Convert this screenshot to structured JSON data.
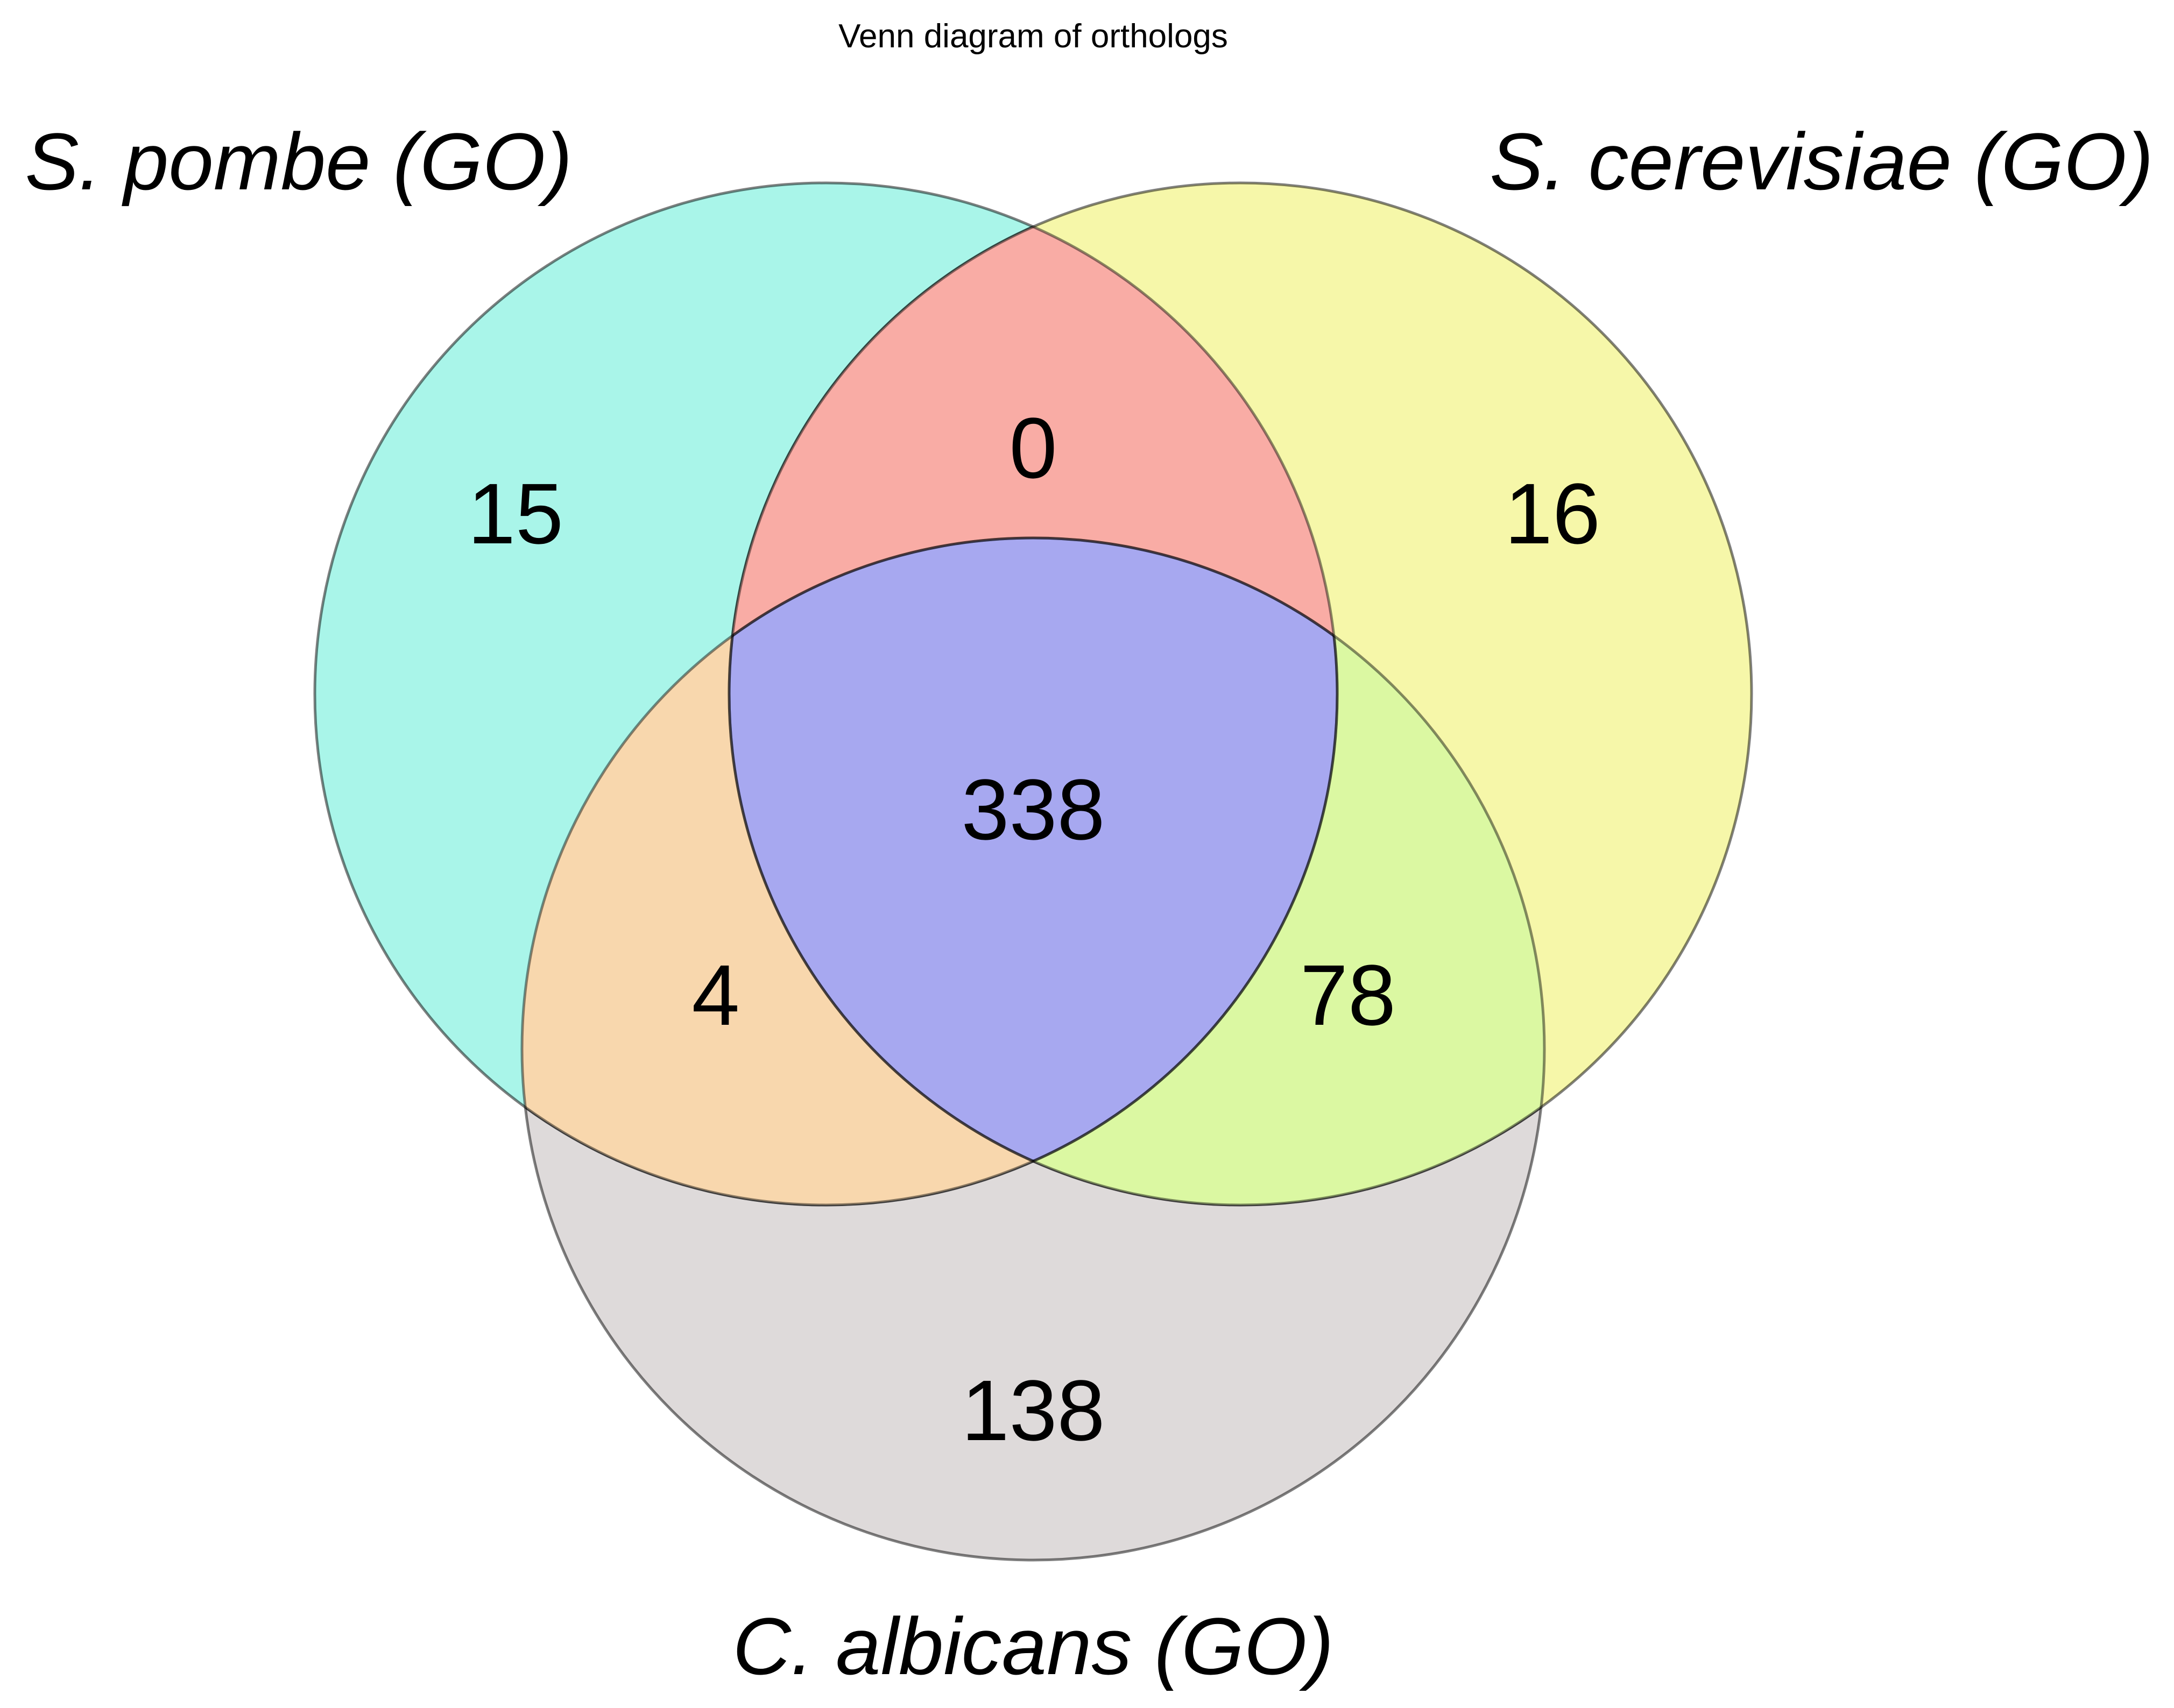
{
  "title": "Venn diagram of orthologs",
  "sets": {
    "a": {
      "label": "S. pombe (GO)",
      "color": "#22e5c5"
    },
    "b": {
      "label": "S. cerevisiae (GO)",
      "color": "#eeee55"
    },
    "c": {
      "label": "C. albicans (GO)",
      "color": "#c0b9b9"
    }
  },
  "regions": {
    "a_only": {
      "count": "15"
    },
    "b_only": {
      "count": "16"
    },
    "c_only": {
      "count": "138"
    },
    "ab_only": {
      "count": "0",
      "color": "#f7817b"
    },
    "ac_only": {
      "count": "4",
      "color": "#f8c189"
    },
    "bc_only": {
      "count": "78",
      "color": "#c9f56c"
    },
    "abc": {
      "count": "338",
      "color": "#8c8ff0"
    }
  }
}
